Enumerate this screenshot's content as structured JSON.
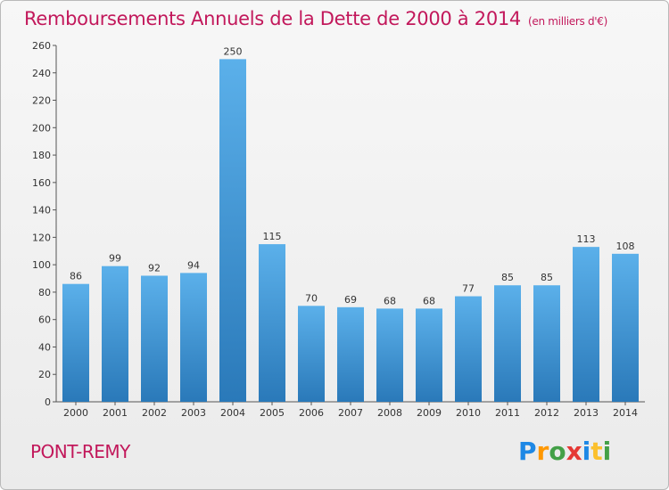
{
  "title": "Remboursements Annuels de la Dette de 2000 à 2014",
  "unit": "(en milliers d'€)",
  "commune": "PONT-REMY",
  "brand": {
    "letters": [
      "P",
      "r",
      "o",
      "x",
      "i",
      "t",
      "i"
    ],
    "colors": [
      "#1e88e5",
      "#ff9800",
      "#43a047",
      "#e53935",
      "#1e88e5",
      "#fbc02d",
      "#43a047"
    ]
  },
  "colors": {
    "title": "#c2185b",
    "bar_top": "#5bb0ea",
    "bar_bottom": "#2a79b9"
  },
  "chart_data": {
    "type": "bar",
    "categories": [
      "2000",
      "2001",
      "2002",
      "2003",
      "2004",
      "2005",
      "2006",
      "2007",
      "2008",
      "2009",
      "2010",
      "2011",
      "2012",
      "2013",
      "2014"
    ],
    "values": [
      86,
      99,
      92,
      94,
      250,
      115,
      70,
      69,
      68,
      68,
      77,
      85,
      85,
      113,
      108
    ],
    "ylim": [
      0,
      260
    ],
    "yticks": [
      0,
      20,
      40,
      60,
      80,
      100,
      120,
      140,
      160,
      180,
      200,
      220,
      240,
      260
    ],
    "grid": false,
    "data_labels": true
  }
}
